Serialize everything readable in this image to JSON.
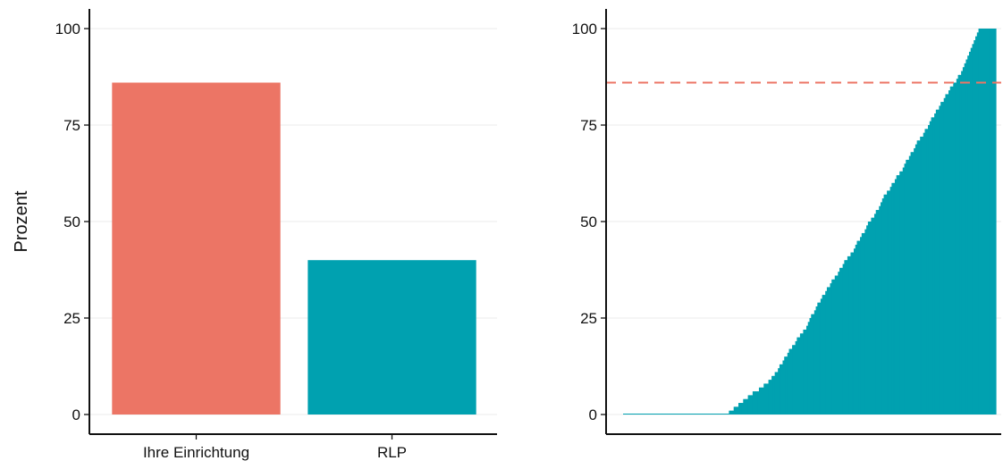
{
  "chart_data": [
    {
      "type": "bar",
      "ylabel": "Prozent",
      "ylim": [
        0,
        100
      ],
      "yticks": [
        0,
        25,
        50,
        75,
        100
      ],
      "ytick_labels": [
        "0",
        "25",
        "50",
        "75",
        "100"
      ],
      "categories": [
        "Ihre Einrichtung",
        "RLP"
      ],
      "values": [
        86,
        40
      ],
      "colors": [
        "#EC7565",
        "#00A1B0"
      ],
      "grid": "horizontal"
    },
    {
      "type": "bar",
      "ylim": [
        0,
        100
      ],
      "yticks": [
        0,
        25,
        50,
        75,
        100
      ],
      "ytick_labels": [
        "0",
        "25",
        "50",
        "75",
        "100"
      ],
      "bar_color": "#00A1B0",
      "reference_line": {
        "value": 86,
        "style": "dashed",
        "color": "#EC7565"
      },
      "values": [
        0,
        0,
        0,
        0,
        0,
        0,
        0,
        0,
        0,
        0,
        0,
        0,
        0,
        0,
        0,
        0,
        0,
        0,
        0,
        0,
        0,
        0,
        0,
        0,
        0,
        0,
        0,
        0,
        0,
        0,
        0,
        0,
        0,
        0,
        0,
        0,
        0,
        0,
        0,
        0,
        0,
        0,
        0,
        0,
        0,
        0,
        0,
        0,
        0,
        0,
        0,
        0,
        0,
        0,
        0,
        0,
        0,
        0,
        0,
        0,
        0,
        0,
        0,
        0,
        0,
        0,
        0,
        1,
        1,
        1,
        2,
        2,
        2,
        3,
        3,
        3,
        4,
        4,
        4,
        5,
        5,
        5,
        6,
        6,
        6,
        6,
        7,
        7,
        7,
        8,
        8,
        8,
        9,
        9,
        10,
        10,
        11,
        11,
        12,
        13,
        13,
        14,
        15,
        15,
        16,
        17,
        17,
        18,
        18,
        19,
        20,
        20,
        21,
        21,
        22,
        22,
        23,
        24,
        25,
        26,
        26,
        27,
        28,
        29,
        29,
        30,
        31,
        31,
        32,
        33,
        33,
        34,
        35,
        35,
        36,
        36,
        37,
        38,
        38,
        39,
        40,
        40,
        41,
        41,
        42,
        42,
        43,
        44,
        45,
        45,
        46,
        47,
        47,
        48,
        49,
        50,
        50,
        51,
        51,
        52,
        53,
        53,
        54,
        55,
        56,
        57,
        57,
        58,
        58,
        59,
        60,
        60,
        61,
        62,
        62,
        63,
        63,
        64,
        65,
        66,
        66,
        67,
        68,
        68,
        69,
        70,
        71,
        71,
        72,
        72,
        73,
        74,
        74,
        75,
        76,
        77,
        77,
        78,
        79,
        79,
        80,
        81,
        81,
        82,
        83,
        83,
        84,
        85,
        85,
        86,
        86,
        87,
        88,
        88,
        89,
        90,
        91,
        92,
        93,
        94,
        95,
        96,
        97,
        98,
        99,
        100,
        100,
        100,
        100,
        100,
        100,
        100,
        100,
        100,
        100,
        100
      ],
      "grid": "horizontal"
    }
  ]
}
